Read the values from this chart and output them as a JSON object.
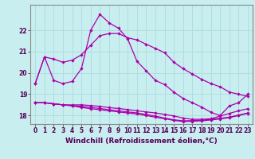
{
  "xlabel": "Windchill (Refroidissement éolien,°C)",
  "background_color": "#c8eef0",
  "grid_color": "#b0dde0",
  "line_color": "#aa00aa",
  "x_ticks": [
    0,
    1,
    2,
    3,
    4,
    5,
    6,
    7,
    8,
    9,
    10,
    11,
    12,
    13,
    14,
    15,
    16,
    17,
    18,
    19,
    20,
    21,
    22,
    23
  ],
  "ylim": [
    17.6,
    23.2
  ],
  "yticks": [
    18,
    19,
    20,
    21,
    22
  ],
  "line1": [
    19.5,
    20.75,
    20.65,
    20.5,
    20.6,
    20.85,
    21.3,
    21.75,
    21.85,
    21.85,
    21.65,
    21.55,
    21.35,
    21.15,
    20.95,
    20.5,
    20.2,
    19.95,
    19.7,
    19.5,
    19.35,
    19.1,
    19.0,
    18.9
  ],
  "line2": [
    19.5,
    20.75,
    19.65,
    19.5,
    19.6,
    20.2,
    22.0,
    22.75,
    22.35,
    22.1,
    21.6,
    20.55,
    20.1,
    19.65,
    19.45,
    19.1,
    18.8,
    18.6,
    18.4,
    18.15,
    18.0,
    18.45,
    18.6,
    19.0
  ],
  "line3": [
    18.6,
    18.6,
    18.55,
    18.5,
    18.5,
    18.5,
    18.47,
    18.43,
    18.37,
    18.33,
    18.28,
    18.22,
    18.17,
    18.12,
    18.05,
    17.98,
    17.88,
    17.82,
    17.82,
    17.85,
    17.97,
    18.1,
    18.22,
    18.32
  ],
  "line4": [
    18.6,
    18.6,
    18.55,
    18.5,
    18.47,
    18.43,
    18.38,
    18.33,
    18.27,
    18.22,
    18.17,
    18.12,
    18.05,
    17.97,
    17.88,
    17.8,
    17.75,
    17.76,
    17.78,
    17.82,
    17.87,
    17.92,
    18.02,
    18.12
  ],
  "line5": [
    18.6,
    18.6,
    18.55,
    18.5,
    18.45,
    18.38,
    18.32,
    18.27,
    18.22,
    18.17,
    18.12,
    18.07,
    18.0,
    17.92,
    17.85,
    17.77,
    17.72,
    17.73,
    17.75,
    17.79,
    17.84,
    17.9,
    18.0,
    18.1
  ]
}
